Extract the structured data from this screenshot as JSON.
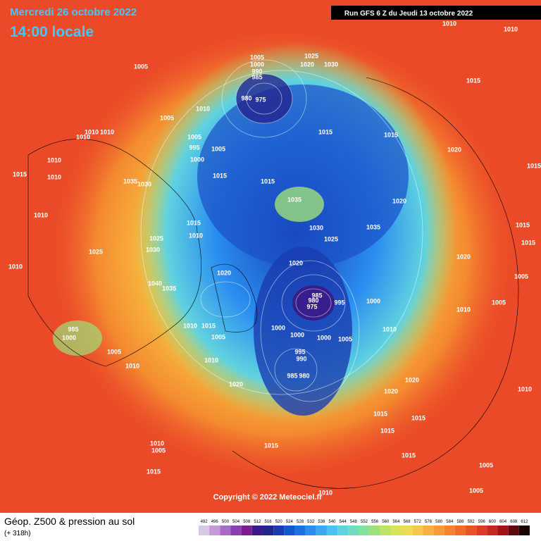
{
  "header": {
    "date": "Mercredi 26 octobre 2022",
    "time": "14:00 locale",
    "run": "Run GFS 6 Z du Jeudi 13 octobre 2022"
  },
  "copyright": "Copyright © 2022 Meteociel.fr",
  "footer": {
    "title": "Géop. Z500 & pression au sol",
    "subtitle": "(+ 318h)"
  },
  "colorbar": {
    "ticks": [
      492,
      496,
      500,
      504,
      508,
      512,
      516,
      520,
      524,
      528,
      532,
      536,
      540,
      544,
      548,
      552,
      556,
      560,
      564,
      568,
      572,
      576,
      580,
      584,
      588,
      592,
      596,
      600,
      604,
      608,
      612
    ],
    "colors": [
      "#d9c7e6",
      "#c49ad6",
      "#a86cc4",
      "#8c3fae",
      "#7a1f8f",
      "#3c1a86",
      "#24268f",
      "#1a3cb0",
      "#1456cf",
      "#1a72e0",
      "#2a8ef0",
      "#3aa8f5",
      "#4cc0f0",
      "#5fd2e0",
      "#6fdcc0",
      "#84e09a",
      "#9ee07a",
      "#bde264",
      "#d8e25a",
      "#eddc52",
      "#f6c84a",
      "#f8b040",
      "#f89a36",
      "#f4822e",
      "#f06a2a",
      "#ea5228",
      "#e03a26",
      "#c82620",
      "#a0141a",
      "#600a0e",
      "#1a0404"
    ]
  },
  "pressure_labels": [
    1010,
    1010,
    1005,
    1025,
    1020,
    1030,
    1000,
    990,
    985,
    980,
    975,
    1005,
    1010,
    1005,
    1015,
    1005,
    995,
    1005,
    1000,
    1010,
    1010,
    1010,
    1015,
    1010,
    1010,
    1035,
    1030,
    1015,
    1015,
    1015,
    1015,
    1020,
    1015,
    1020,
    1035,
    1035,
    1030,
    1025,
    1015,
    1010,
    1025,
    1030,
    1025,
    1010,
    1010,
    1015,
    1015,
    1020,
    1005,
    1020,
    1020,
    1040,
    1035,
    985,
    980,
    975,
    995,
    1000,
    1005,
    1010,
    1010,
    1015,
    1000,
    1000,
    1000,
    1005,
    1010,
    995,
    1000,
    1005,
    1005,
    995,
    990,
    985,
    980,
    1010,
    1010,
    1020,
    1020,
    1020,
    1010,
    1015,
    1015,
    1015,
    1015,
    1010,
    1005,
    1015,
    1005,
    1015,
    1010,
    1005
  ]
}
